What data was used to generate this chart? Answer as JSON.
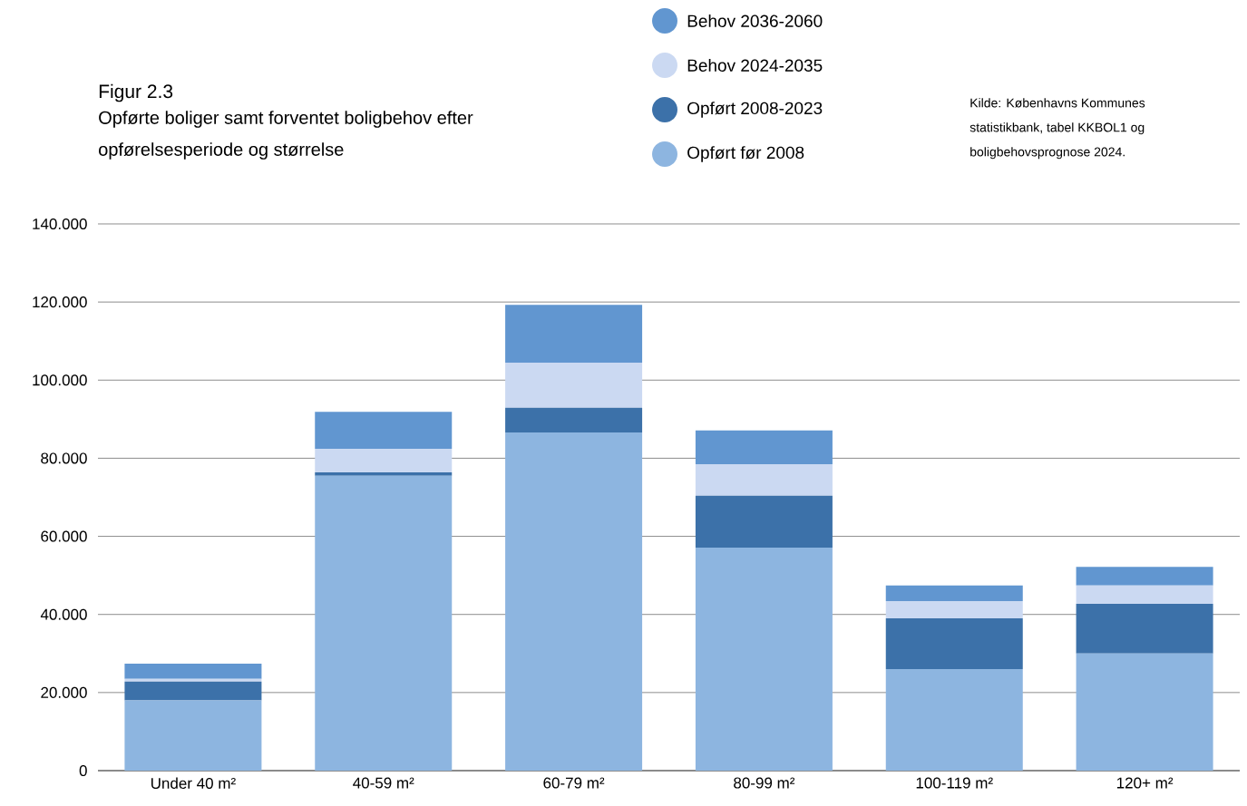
{
  "chart_data": {
    "type": "bar",
    "stacked": true,
    "title": "Figur 2.3",
    "subtitle": "Opførte boliger samt forventet boligbehov efter opførelsesperiode og størrelse",
    "annotations": [
      "Kilde: Københavns Kommunes statistikbank, tabel KKBOL1 og boligbehovsprognose 2024."
    ],
    "categories": [
      "Under 40 m²",
      "40-59 m²",
      "60-79 m²",
      "80-99 m²",
      "100-119 m²",
      "120+ m²"
    ],
    "series": [
      {
        "name": "Opført før 2008",
        "color": "#8db5e0",
        "values": [
          18,
          75.5,
          86.6,
          57.1,
          26,
          30
        ]
      },
      {
        "name": "Opført 2008-2023",
        "color": "#3c71a9",
        "values": [
          4.8,
          0.9,
          6.3,
          13.3,
          13,
          12.7
        ]
      },
      {
        "name": "Behov 2024-2035",
        "color": "#cbd9f2",
        "values": [
          0.7,
          6,
          11.6,
          8.1,
          4.4,
          4.7
        ]
      },
      {
        "name": "Behov 2036-2060",
        "color": "#6196d0",
        "values": [
          3.9,
          9.5,
          14.8,
          8.6,
          4,
          4.8
        ]
      }
    ],
    "ylim": [
      0,
      140
    ],
    "yticks": [
      {
        "value": 0,
        "label": "0"
      },
      {
        "value": 20,
        "label": "20.000"
      },
      {
        "value": 40,
        "label": "40.000"
      },
      {
        "value": 60,
        "label": "60.000"
      },
      {
        "value": 80,
        "label": "80.000"
      },
      {
        "value": 100,
        "label": "100.000"
      },
      {
        "value": 120,
        "label": "120.000"
      },
      {
        "value": 140,
        "label": "140.000"
      }
    ],
    "grid": "y",
    "legend": "top"
  }
}
